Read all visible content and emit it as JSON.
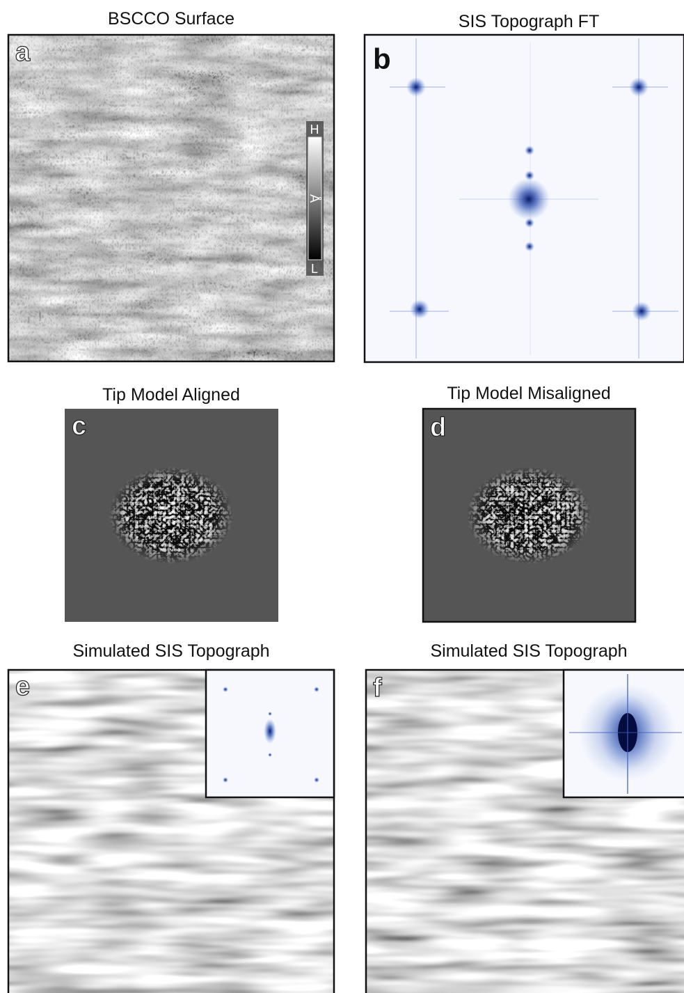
{
  "panels": [
    {
      "letter": "a",
      "title": "BSCCO Surface",
      "colorbar": {
        "high": "H",
        "unit": "Å",
        "low": "L"
      }
    },
    {
      "letter": "b",
      "title": "SIS Topograph FT"
    },
    {
      "letter": "c",
      "title": "Tip Model Aligned"
    },
    {
      "letter": "d",
      "title": "Tip Model Misaligned"
    },
    {
      "letter": "e",
      "title": "Simulated SIS Topograph"
    },
    {
      "letter": "f",
      "title": "Simulated SIS Topograph"
    }
  ]
}
